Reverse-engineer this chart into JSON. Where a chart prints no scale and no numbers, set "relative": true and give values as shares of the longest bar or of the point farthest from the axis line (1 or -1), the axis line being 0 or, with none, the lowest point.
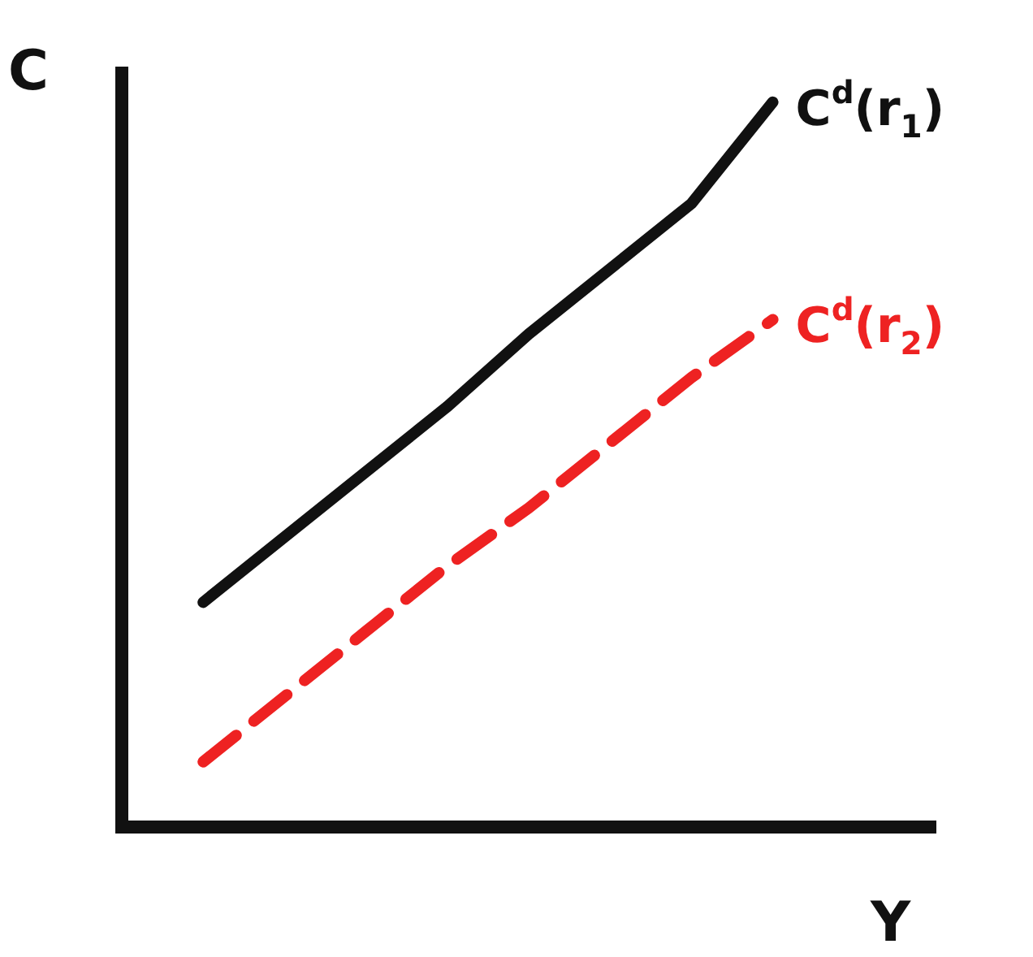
{
  "chart_data": {
    "type": "line",
    "relative": true,
    "xlabel": "Y",
    "ylabel": "C",
    "grid": false,
    "legend": false,
    "marker": "none",
    "categories": [
      null,
      null,
      null,
      null,
      null,
      null,
      null,
      null,
      null,
      null,
      null
    ],
    "series": [
      {
        "name": "C$^{d}$(r$_{1}$)",
        "color": "#111111",
        "line_style": "solid",
        "values": [
          null,
          0.31,
          0.4,
          0.49,
          0.58,
          0.68,
          0.77,
          0.86,
          1,
          null,
          null
        ]
      },
      {
        "name": "C$^{d}$(r$_{2}$)",
        "color": "#ee2222",
        "line_style": "dashed",
        "values": [
          null,
          0.09,
          0.18,
          0.27,
          0.36,
          0.44,
          0.53,
          0.62,
          0.7,
          null,
          null
        ]
      }
    ]
  }
}
